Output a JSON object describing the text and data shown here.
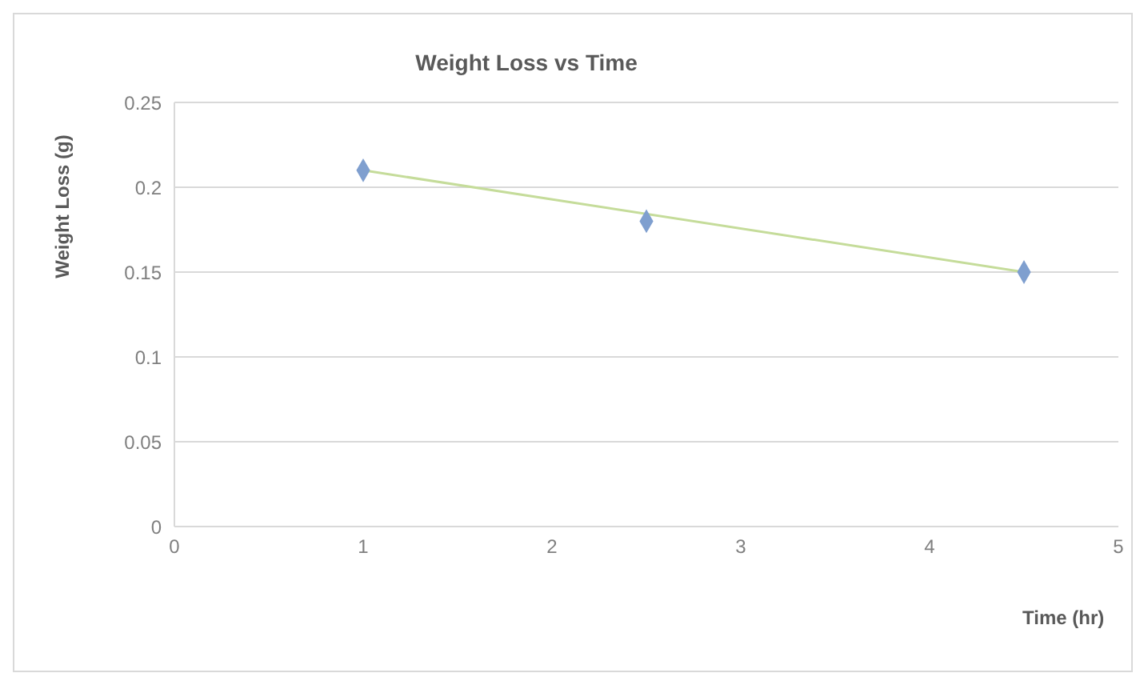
{
  "chart_data": {
    "type": "scatter",
    "title": "Weight Loss vs Time",
    "xlabel": "Time (hr)",
    "ylabel": "Weight Loss (g)",
    "series": [
      {
        "color": "#7f9fcf",
        "x": [
          1,
          2.5,
          4.5
        ],
        "values": [
          0.21,
          0.18,
          0.15
        ],
        "marker": "diamond"
      },
      {
        "type": "line",
        "color": "#c5dc9a",
        "x": [
          1,
          4.5
        ],
        "values": [
          0.21,
          0.15
        ],
        "marker": "none"
      }
    ],
    "xlim": [
      0,
      5
    ],
    "xticks": [
      0,
      1,
      2,
      3,
      4,
      5
    ],
    "ylim": [
      0,
      0.25
    ],
    "yticks": [
      0,
      0.05,
      0.1,
      0.15,
      0.2,
      0.25
    ],
    "grid": "y",
    "legend": false
  }
}
